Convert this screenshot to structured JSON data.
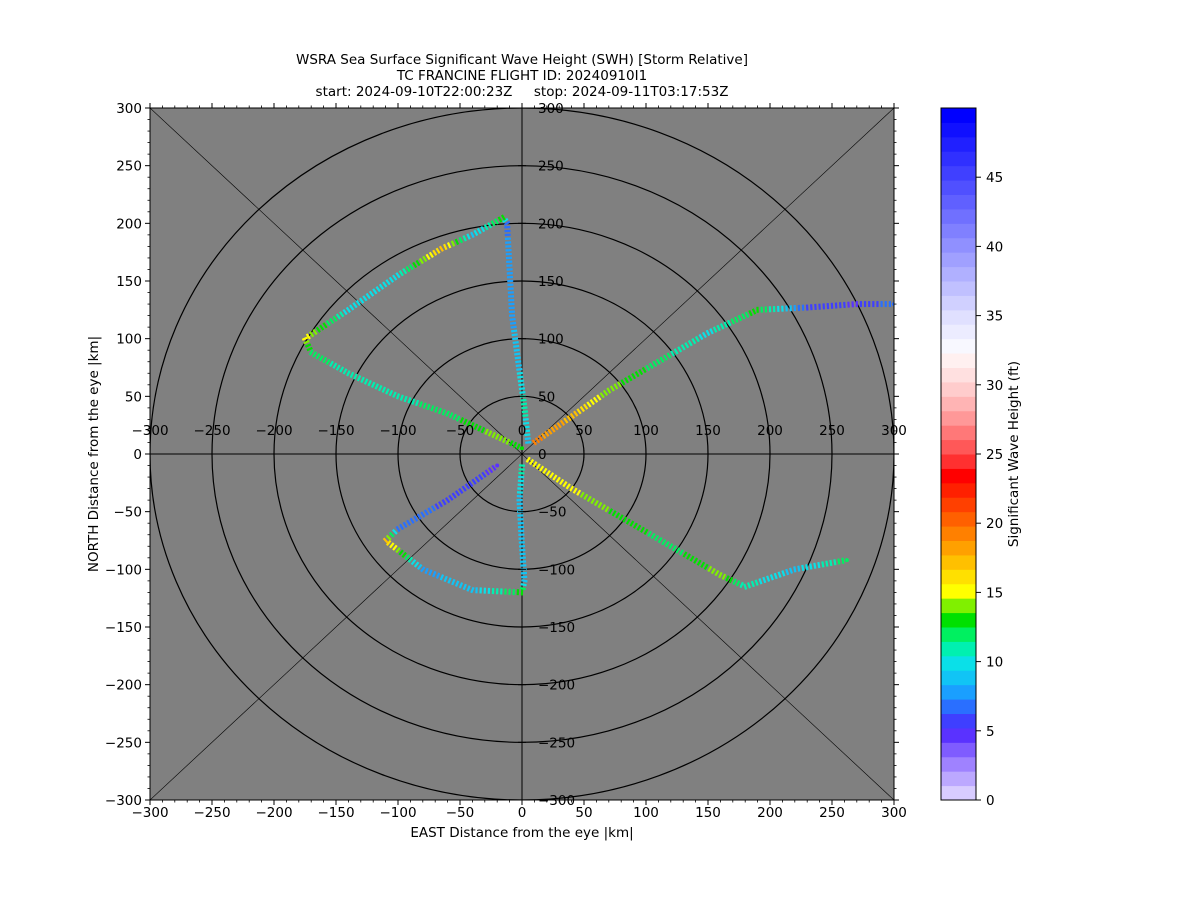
{
  "title": {
    "line1": "WSRA Sea Surface Significant Wave Height (SWH) [Storm Relative]",
    "line2": "TC FRANCINE FLIGHT ID: 20240910I1",
    "line3": "start: 2024-09-10T22:00:23Z     stop: 2024-09-11T03:17:53Z"
  },
  "chart_data": {
    "type": "scatter",
    "xlabel": "EAST Distance from the eye |km|",
    "ylabel": "NORTH Distance from the eye |km|",
    "xlim": [
      -300,
      300
    ],
    "ylim": [
      -300,
      300
    ],
    "xticks": [
      -300,
      -250,
      -200,
      -150,
      -100,
      -50,
      0,
      50,
      100,
      150,
      200,
      250,
      300
    ],
    "yticks": [
      -300,
      -250,
      -200,
      -150,
      -100,
      -50,
      0,
      50,
      100,
      150,
      200,
      250,
      300
    ],
    "range_rings_km": [
      50,
      100,
      150,
      200,
      250,
      300
    ],
    "grid": false,
    "background_color": "#808080",
    "colorbar": {
      "label": "Significant Wave Height (ft)",
      "min": 0,
      "max": 50,
      "ticks": [
        0,
        5,
        10,
        15,
        20,
        25,
        30,
        35,
        40,
        45
      ],
      "colors": [
        "#d8ccff",
        "#bca8ff",
        "#9f82ff",
        "#7f5cff",
        "#5a32ff",
        "#3f3fff",
        "#2a6fff",
        "#1a9fff",
        "#11c4f5",
        "#0ae0e8",
        "#00f0b0",
        "#00f060",
        "#00e000",
        "#80f000",
        "#ffff00",
        "#ffe000",
        "#ffc000",
        "#ffa000",
        "#ff8000",
        "#ff6000",
        "#ff4000",
        "#ff2000",
        "#ff0000",
        "#ff3030",
        "#ff5858",
        "#ff7878",
        "#ff9898",
        "#ffb4b4",
        "#ffcccc",
        "#ffe0e0",
        "#fff0f0",
        "#f8f8ff",
        "#ececff",
        "#e0e0ff",
        "#d0d0ff",
        "#c0c0ff",
        "#b0b0ff",
        "#a0a0ff",
        "#9090ff",
        "#8080ff",
        "#7070ff",
        "#6060ff",
        "#5050ff",
        "#4040ff",
        "#3030ff",
        "#2020ff",
        "#1010ff",
        "#0000ff"
      ]
    },
    "series": [
      {
        "points": [
          [
            5,
            10,
            9
          ],
          [
            2,
            40,
            11
          ],
          [
            -3,
            80,
            9
          ],
          [
            -8,
            120,
            8
          ],
          [
            -10,
            160,
            8
          ],
          [
            -12,
            200,
            7
          ],
          [
            -15,
            205,
            13
          ],
          [
            -40,
            190,
            9
          ],
          [
            -65,
            178,
            17
          ],
          [
            -100,
            155,
            10
          ],
          [
            -140,
            125,
            10
          ],
          [
            -175,
            100,
            15
          ],
          [
            -170,
            88,
            12
          ],
          [
            -140,
            70,
            11
          ],
          [
            -100,
            50,
            11
          ],
          [
            -60,
            35,
            12
          ],
          [
            -20,
            15,
            14
          ],
          [
            0,
            5,
            13
          ]
        ]
      },
      {
        "points": [
          [
            10,
            10,
            19
          ],
          [
            30,
            25,
            18
          ],
          [
            70,
            55,
            14
          ],
          [
            110,
            80,
            12
          ],
          [
            150,
            105,
            10
          ],
          [
            190,
            125,
            13
          ],
          [
            230,
            127,
            6
          ],
          [
            270,
            130,
            5
          ],
          [
            300,
            130,
            7
          ]
        ]
      },
      {
        "points": [
          [
            5,
            -5,
            15
          ],
          [
            40,
            -30,
            15
          ],
          [
            80,
            -55,
            13
          ],
          [
            120,
            -80,
            12
          ],
          [
            160,
            -105,
            14
          ],
          [
            180,
            -115,
            11
          ],
          [
            220,
            -100,
            9
          ],
          [
            262,
            -92,
            12
          ]
        ]
      },
      {
        "points": [
          [
            0,
            -10,
            11
          ],
          [
            -2,
            -40,
            9
          ],
          [
            0,
            -80,
            9
          ],
          [
            2,
            -110,
            9
          ],
          [
            0,
            -120,
            13
          ],
          [
            -40,
            -118,
            9
          ],
          [
            -80,
            -100,
            8
          ],
          [
            -110,
            -75,
            17
          ],
          [
            -100,
            -65,
            7
          ],
          [
            -60,
            -40,
            6
          ],
          [
            -20,
            -10,
            5
          ]
        ]
      }
    ]
  }
}
